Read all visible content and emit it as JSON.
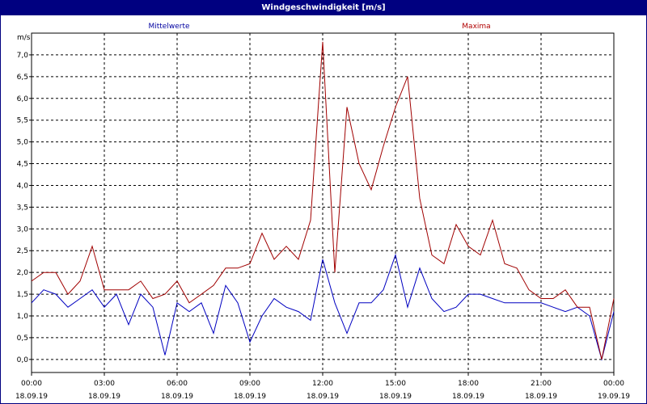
{
  "window": {
    "title": "Windgeschwindigkeit [m/s]"
  },
  "chart_data": {
    "type": "line",
    "title": "Windgeschwindigkeit [m/s]",
    "ylabel": "m/s",
    "xlabel": "",
    "ylim": [
      -0.3,
      7.5
    ],
    "xlim": [
      0,
      24
    ],
    "grid": true,
    "legend_placement": "top",
    "y_ticks": [
      "0,0",
      "0,5",
      "1,0",
      "1,5",
      "2,0",
      "2,5",
      "3,0",
      "3,5",
      "4,0",
      "4,5",
      "5,0",
      "5,5",
      "6,0",
      "6,5",
      "7,0"
    ],
    "x_ticks": [
      {
        "time": "00:00",
        "date": "18.09.19"
      },
      {
        "time": "03:00",
        "date": "18.09.19"
      },
      {
        "time": "06:00",
        "date": "18.09.19"
      },
      {
        "time": "09:00",
        "date": "18.09.19"
      },
      {
        "time": "12:00",
        "date": "18.09.19"
      },
      {
        "time": "15:00",
        "date": "18.09.19"
      },
      {
        "time": "18:00",
        "date": "18.09.19"
      },
      {
        "time": "21:00",
        "date": "18.09.19"
      },
      {
        "time": "00:00",
        "date": "19.09.19"
      }
    ],
    "x_hours": [
      0,
      0.5,
      1,
      1.5,
      2,
      2.5,
      3,
      3.5,
      4,
      4.5,
      5,
      5.5,
      6,
      6.5,
      7,
      7.5,
      8,
      8.5,
      9,
      9.5,
      10,
      10.5,
      11,
      11.5,
      12,
      12.5,
      13,
      13.5,
      14,
      14.5,
      15,
      15.5,
      16,
      16.5,
      17,
      17.5,
      18,
      18.5,
      19,
      19.5,
      20,
      20.5,
      21,
      21.5,
      22,
      22.5,
      23,
      23.5,
      24
    ],
    "series": [
      {
        "name": "Mittelwerte",
        "color": "#0000c0",
        "values": [
          1.3,
          1.6,
          1.5,
          1.2,
          1.4,
          1.6,
          1.2,
          1.5,
          0.8,
          1.5,
          1.2,
          0.1,
          1.3,
          1.1,
          1.3,
          0.6,
          1.7,
          1.3,
          0.4,
          1.0,
          1.4,
          1.2,
          1.1,
          0.9,
          2.3,
          1.3,
          0.6,
          1.3,
          1.3,
          1.6,
          2.4,
          1.2,
          2.1,
          1.4,
          1.1,
          1.2,
          1.5,
          1.5,
          1.4,
          1.3,
          1.3,
          1.3,
          1.3,
          1.2,
          1.1,
          1.2,
          1.0,
          0.0,
          1.1
        ]
      },
      {
        "name": "Maxima",
        "color": "#a00000",
        "values": [
          1.8,
          2.0,
          2.0,
          1.5,
          1.8,
          2.6,
          1.6,
          1.6,
          1.6,
          1.8,
          1.4,
          1.5,
          1.8,
          1.3,
          1.5,
          1.7,
          2.1,
          2.1,
          2.2,
          2.9,
          2.3,
          2.6,
          2.3,
          3.2,
          7.3,
          2.0,
          5.8,
          4.5,
          3.9,
          4.9,
          5.8,
          6.5,
          3.7,
          2.4,
          2.2,
          3.1,
          2.6,
          2.4,
          3.2,
          2.2,
          2.1,
          1.6,
          1.4,
          1.4,
          1.6,
          1.2,
          1.2,
          0.0,
          1.4
        ]
      }
    ]
  }
}
